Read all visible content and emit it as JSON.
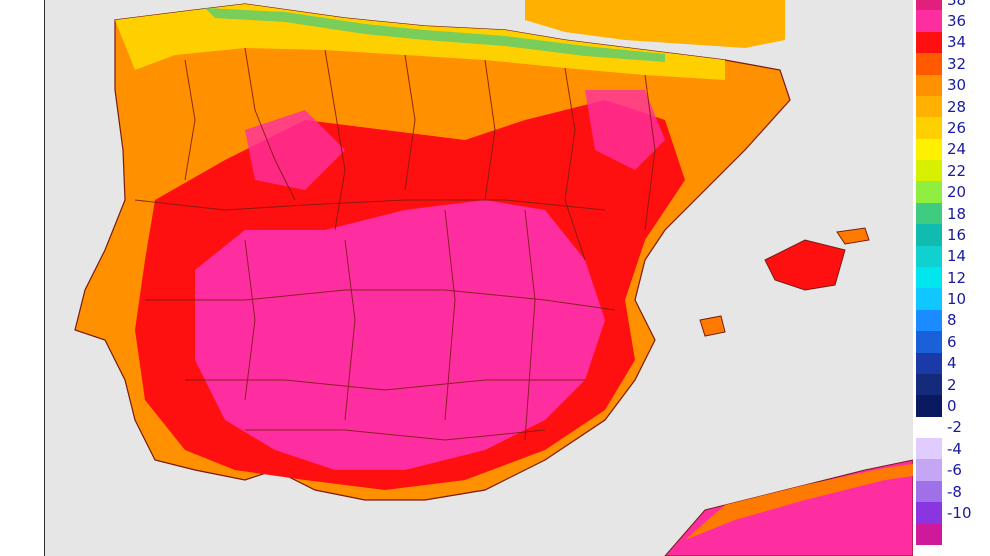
{
  "legend": {
    "ticks": [
      "38",
      "36",
      "34",
      "32",
      "30",
      "28",
      "26",
      "24",
      "22",
      "20",
      "18",
      "16",
      "14",
      "12",
      "10",
      "8",
      "6",
      "4",
      "2",
      "0",
      "-2",
      "-4",
      "-6",
      "-8",
      "-10"
    ],
    "bands": [
      {
        "color": "#e0207a"
      },
      {
        "color": "#ff2ea0"
      },
      {
        "color": "#ff1010"
      },
      {
        "color": "#ff5a00"
      },
      {
        "color": "#ff9000"
      },
      {
        "color": "#ffb000"
      },
      {
        "color": "#ffd000"
      },
      {
        "color": "#fff000"
      },
      {
        "color": "#d8f000"
      },
      {
        "color": "#90ee40"
      },
      {
        "color": "#40cc80"
      },
      {
        "color": "#10bbb0"
      },
      {
        "color": "#10d0d0"
      },
      {
        "color": "#00e6ee"
      },
      {
        "color": "#10c8ff"
      },
      {
        "color": "#1a8cff"
      },
      {
        "color": "#1a60d8"
      },
      {
        "color": "#1a3aa8"
      },
      {
        "color": "#142a7a"
      },
      {
        "color": "#0a1a60"
      },
      {
        "color": "#ffffff"
      },
      {
        "color": "#e0ccff"
      },
      {
        "color": "#c4a6f4"
      },
      {
        "color": "#a070e8"
      },
      {
        "color": "#8a36e0"
      },
      {
        "color": "#d0189a"
      }
    ]
  },
  "colors": {
    "sea": "#e6e6e6",
    "hot_pink": "#ff2ea0",
    "hot_red": "#ff1010",
    "orange": "#ff7a00",
    "yellow_orange": "#ffb000",
    "border": "#7a1a10"
  }
}
